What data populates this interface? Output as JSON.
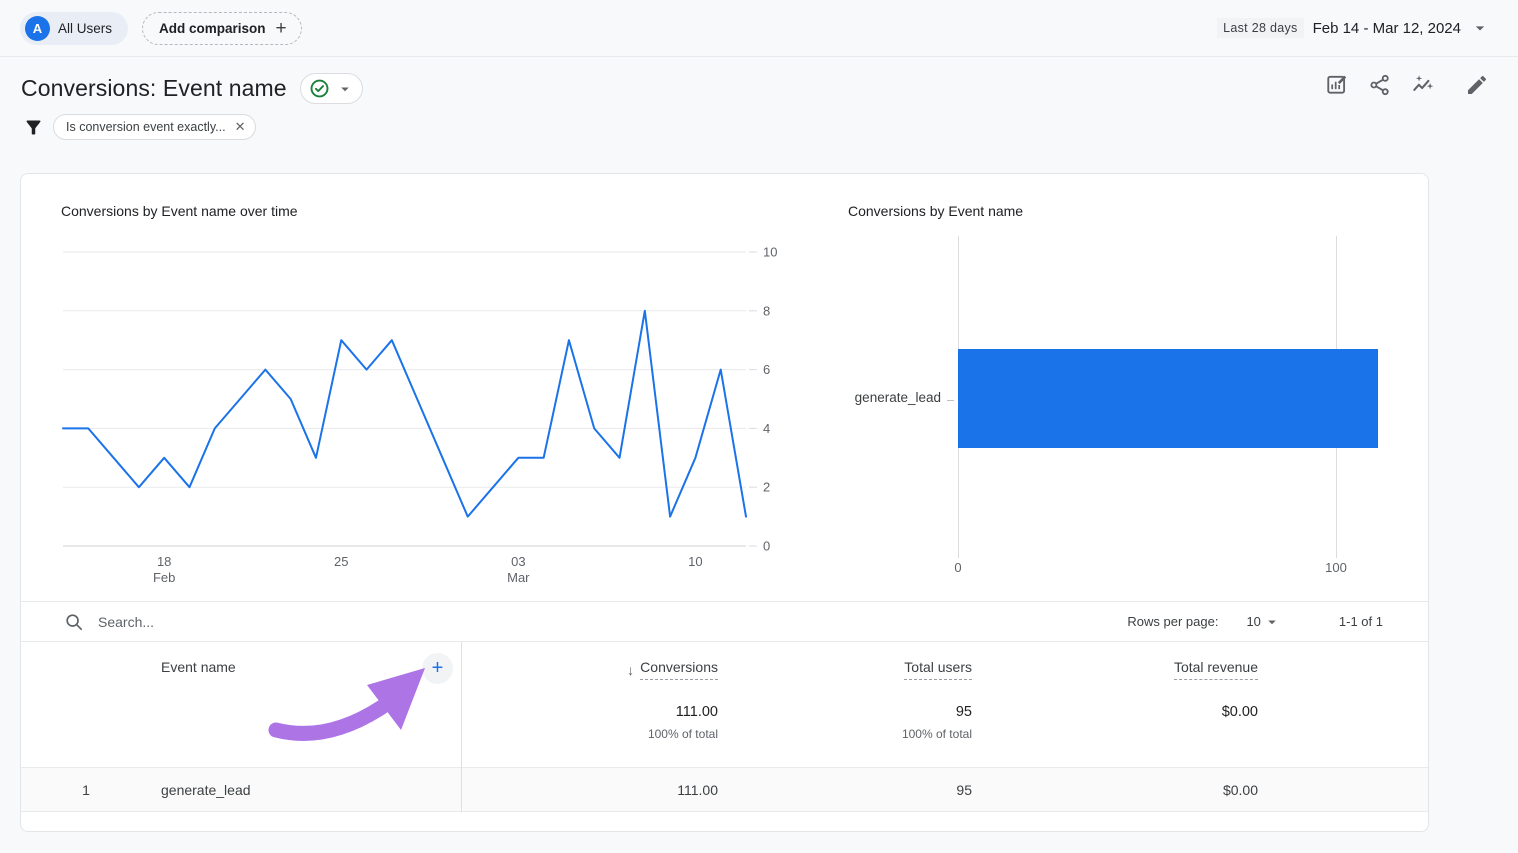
{
  "topbar": {
    "avatar_letter": "A",
    "all_users": "All Users",
    "add_comparison": "Add comparison",
    "plus": "+",
    "range_preset": "Last 28 days",
    "range_dates": "Feb 14 - Mar 12, 2024"
  },
  "header": {
    "title": "Conversions: Event name",
    "filter_label": "Is conversion event exactly...",
    "close_glyph": "✕"
  },
  "chart_data": [
    {
      "type": "line",
      "title": "Conversions by Event name over time",
      "x_start": "Feb 14, 2024",
      "x_end": "Mar 12, 2024",
      "series": [
        {
          "name": "Conversions",
          "values": [
            4,
            4,
            3,
            2,
            3,
            2,
            4,
            5,
            6,
            5,
            3,
            7,
            6,
            7,
            5,
            3,
            1,
            2,
            3,
            3,
            7,
            4,
            3,
            8,
            1,
            3,
            6,
            1
          ]
        }
      ],
      "ylim": [
        0,
        10
      ],
      "y_ticks": [
        0,
        2,
        4,
        6,
        8,
        10
      ],
      "x_ticks": [
        {
          "at": 4,
          "label": "18",
          "sub": "Feb"
        },
        {
          "at": 11,
          "label": "25",
          "sub": ""
        },
        {
          "at": 18,
          "label": "03",
          "sub": "Mar"
        },
        {
          "at": 25,
          "label": "10",
          "sub": ""
        }
      ],
      "grid": true,
      "line_color": "#1a73e8"
    },
    {
      "type": "bar",
      "orientation": "horizontal",
      "title": "Conversions by Event name",
      "categories": [
        "generate_lead"
      ],
      "values": [
        111
      ],
      "x_ticks": [
        0,
        100
      ],
      "xlim": [
        0,
        120
      ],
      "bar_color": "#1a73e8"
    }
  ],
  "toolbar": {
    "search_placeholder": "Search...",
    "rows_per_page_label": "Rows per page:",
    "rows_per_page_value": "10",
    "pagination": "1-1 of 1"
  },
  "table": {
    "dimension_header": "Event name",
    "add_column_glyph": "+",
    "sort_arrow": "↓",
    "metrics": [
      {
        "label": "Conversions",
        "total": "111.00",
        "subtext": "100% of total"
      },
      {
        "label": "Total users",
        "total": "95",
        "subtext": "100% of total"
      },
      {
        "label": "Total revenue",
        "total": "$0.00",
        "subtext": ""
      }
    ],
    "rows": [
      {
        "index": "1",
        "event_name": "generate_lead",
        "conversions": "111.00",
        "total_users": "95",
        "total_revenue": "$0.00"
      }
    ]
  },
  "colors": {
    "accent_blue": "#1a73e8",
    "annotation_purple": "#ad74e6",
    "check_green": "#188038"
  }
}
